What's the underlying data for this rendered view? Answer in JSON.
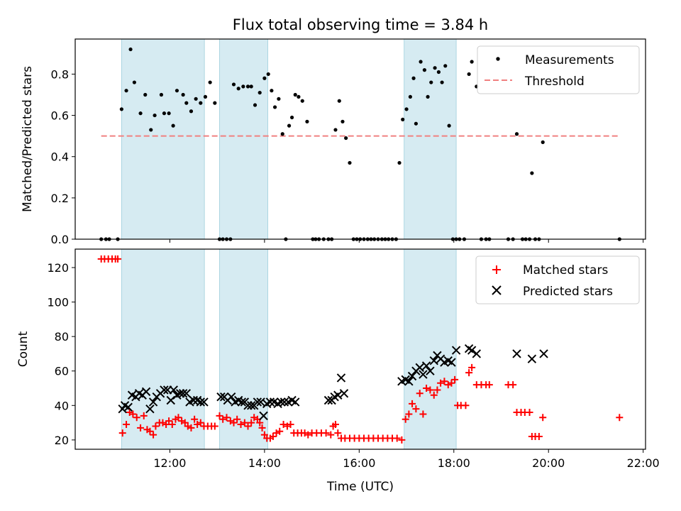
{
  "chart_data": [
    {
      "type": "scatter",
      "title": "Flux total observing time = 3.84 h",
      "xlabel": "",
      "ylabel": "Matched/Predicted stars",
      "xlim": [
        10.0,
        22.05
      ],
      "ylim": [
        0.0,
        0.97
      ],
      "yticks": [
        0.0,
        0.2,
        0.4,
        0.6,
        0.8
      ],
      "ytick_labels": [
        "0.0",
        "0.2",
        "0.4",
        "0.6",
        "0.8"
      ],
      "shaded_intervals": [
        [
          10.98,
          12.73
        ],
        [
          13.05,
          14.07
        ],
        [
          16.95,
          18.05
        ]
      ],
      "legend_position": "top-right",
      "series": [
        {
          "name": "Measurements",
          "style": "dot",
          "color": "#000000",
          "x": [
            10.55,
            10.65,
            10.72,
            10.9,
            10.98,
            11.08,
            11.17,
            11.25,
            11.38,
            11.48,
            11.6,
            11.68,
            11.82,
            11.88,
            11.98,
            12.07,
            12.15,
            12.28,
            12.35,
            12.45,
            12.55,
            12.65,
            12.75,
            12.85,
            12.95,
            13.05,
            13.12,
            13.2,
            13.28,
            13.35,
            13.45,
            13.55,
            13.65,
            13.72,
            13.8,
            13.9,
            14.0,
            14.08,
            14.15,
            14.22,
            14.3,
            14.38,
            14.45,
            14.52,
            14.58,
            14.65,
            14.72,
            14.8,
            14.9,
            15.02,
            15.08,
            15.15,
            15.25,
            15.35,
            15.42,
            15.5,
            15.58,
            15.65,
            15.72,
            15.8,
            15.88,
            15.95,
            16.02,
            16.1,
            16.18,
            16.25,
            16.32,
            16.4,
            16.48,
            16.55,
            16.62,
            16.7,
            16.78,
            16.85,
            16.92,
            17.0,
            17.08,
            17.15,
            17.2,
            17.3,
            17.38,
            17.45,
            17.52,
            17.6,
            17.68,
            17.75,
            17.82,
            17.9,
            17.98,
            18.05,
            18.12,
            18.22,
            18.32,
            18.38,
            18.48,
            18.58,
            18.68,
            18.75,
            19.15,
            19.25,
            19.33,
            19.45,
            19.52,
            19.6,
            19.65,
            19.72,
            19.8,
            19.88,
            21.5
          ],
          "y": [
            0.0,
            0.0,
            0.0,
            0.0,
            0.63,
            0.72,
            0.92,
            0.76,
            0.61,
            0.7,
            0.53,
            0.6,
            0.7,
            0.61,
            0.61,
            0.55,
            0.72,
            0.7,
            0.66,
            0.62,
            0.68,
            0.66,
            0.69,
            0.76,
            0.66,
            0.0,
            0.0,
            0.0,
            0.0,
            0.75,
            0.73,
            0.74,
            0.74,
            0.74,
            0.65,
            0.71,
            0.78,
            0.8,
            0.72,
            0.64,
            0.68,
            0.51,
            0.0,
            0.55,
            0.59,
            0.7,
            0.69,
            0.67,
            0.57,
            0.0,
            0.0,
            0.0,
            0.0,
            0.0,
            0.0,
            0.53,
            0.67,
            0.57,
            0.49,
            0.37,
            0.0,
            0.0,
            0.0,
            0.0,
            0.0,
            0.0,
            0.0,
            0.0,
            0.0,
            0.0,
            0.0,
            0.0,
            0.0,
            0.37,
            0.58,
            0.63,
            0.69,
            0.78,
            0.56,
            0.86,
            0.82,
            0.69,
            0.76,
            0.83,
            0.81,
            0.76,
            0.84,
            0.55,
            0.0,
            0.0,
            0.0,
            0.0,
            0.8,
            0.86,
            0.74,
            0.0,
            0.0,
            0.0,
            0.0,
            0.0,
            0.51,
            0.0,
            0.0,
            0.0,
            0.32,
            0.0,
            0.0,
            0.47,
            0.0
          ]
        },
        {
          "name": "Threshold",
          "style": "dashed-line",
          "color": "#f08080",
          "x": [
            10.55,
            21.5
          ],
          "y": [
            0.5,
            0.5
          ]
        }
      ]
    },
    {
      "type": "scatter",
      "title": "",
      "xlabel": "Time (UTC)",
      "ylabel": "Count",
      "xlim": [
        10.0,
        22.05
      ],
      "ylim": [
        14.6,
        130.7
      ],
      "yticks": [
        20,
        40,
        60,
        80,
        100,
        120
      ],
      "ytick_labels": [
        "20",
        "40",
        "60",
        "80",
        "100",
        "120"
      ],
      "xticks": [
        12,
        14,
        16,
        18,
        20,
        22
      ],
      "xtick_labels": [
        "12:00",
        "14:00",
        "16:00",
        "18:00",
        "20:00",
        "22:00"
      ],
      "shaded_intervals": [
        [
          10.98,
          12.73
        ],
        [
          13.05,
          14.07
        ],
        [
          16.95,
          18.05
        ]
      ],
      "legend_position": "top-right",
      "series": [
        {
          "name": "Matched stars",
          "style": "plus",
          "color": "#ff0000",
          "x": [
            10.55,
            10.62,
            10.7,
            10.78,
            10.85,
            10.9,
            11.0,
            11.08,
            11.15,
            11.22,
            11.3,
            11.38,
            11.45,
            11.52,
            11.58,
            11.65,
            11.7,
            11.78,
            11.85,
            11.92,
            11.98,
            12.05,
            12.12,
            12.18,
            12.25,
            12.32,
            12.38,
            12.45,
            12.52,
            12.58,
            12.65,
            12.72,
            12.8,
            12.88,
            12.95,
            13.05,
            13.12,
            13.2,
            13.28,
            13.35,
            13.42,
            13.5,
            13.58,
            13.65,
            13.72,
            13.78,
            13.85,
            13.9,
            13.95,
            14.0,
            14.05,
            14.12,
            14.18,
            14.25,
            14.32,
            14.4,
            14.48,
            14.55,
            14.62,
            14.7,
            14.78,
            14.85,
            14.92,
            15.0,
            15.1,
            15.2,
            15.3,
            15.4,
            15.45,
            15.5,
            15.55,
            15.62,
            15.7,
            15.8,
            15.9,
            16.0,
            16.1,
            16.2,
            16.3,
            16.4,
            16.5,
            16.6,
            16.7,
            16.8,
            16.9,
            16.98,
            17.05,
            17.12,
            17.2,
            17.28,
            17.35,
            17.42,
            17.5,
            17.58,
            17.65,
            17.72,
            17.8,
            17.88,
            17.95,
            18.02,
            18.08,
            18.15,
            18.25,
            18.32,
            18.38,
            18.48,
            18.58,
            18.68,
            18.75,
            19.15,
            19.25,
            19.33,
            19.42,
            19.5,
            19.6,
            19.65,
            19.72,
            19.8,
            19.88,
            21.5
          ],
          "y": [
            125,
            125,
            125,
            125,
            125,
            125,
            24,
            29,
            36,
            35,
            33,
            27,
            34,
            26,
            25,
            23,
            28,
            30,
            30,
            29,
            31,
            29,
            32,
            33,
            31,
            30,
            28,
            27,
            32,
            29,
            30,
            28,
            28,
            28,
            28,
            34,
            32,
            33,
            31,
            30,
            32,
            29,
            30,
            28,
            30,
            33,
            32,
            30,
            27,
            23,
            21,
            21,
            22,
            24,
            25,
            29,
            28,
            29,
            24,
            24,
            24,
            24,
            23,
            24,
            24,
            24,
            24,
            23,
            28,
            29,
            24,
            21,
            21,
            21,
            21,
            21,
            21,
            21,
            21,
            21,
            21,
            21,
            21,
            21,
            20,
            32,
            35,
            41,
            38,
            47,
            35,
            50,
            49,
            46,
            49,
            53,
            54,
            52,
            53,
            55,
            40,
            40,
            40,
            59,
            62,
            52,
            52,
            52,
            52,
            52,
            52,
            36,
            36,
            36,
            36,
            22,
            22,
            22,
            33,
            33
          ]
        },
        {
          "name": "Predicted stars",
          "style": "x",
          "color": "#000000",
          "x": [
            11.0,
            11.05,
            11.12,
            11.2,
            11.28,
            11.35,
            11.42,
            11.5,
            11.58,
            11.65,
            11.72,
            11.8,
            11.88,
            11.95,
            12.02,
            12.08,
            12.15,
            12.22,
            12.28,
            12.35,
            12.42,
            12.5,
            12.58,
            12.65,
            12.72,
            13.08,
            13.15,
            13.22,
            13.3,
            13.38,
            13.45,
            13.52,
            13.58,
            13.65,
            13.72,
            13.78,
            13.85,
            13.92,
            13.98,
            14.05,
            14.12,
            14.2,
            14.28,
            14.35,
            14.42,
            14.5,
            14.58,
            14.65,
            15.35,
            15.42,
            15.48,
            15.55,
            15.62,
            15.68,
            16.9,
            16.98,
            17.05,
            17.12,
            17.2,
            17.28,
            17.35,
            17.42,
            17.5,
            17.58,
            17.65,
            17.72,
            17.8,
            17.88,
            17.95,
            18.05,
            18.32,
            18.38,
            18.48,
            19.33,
            19.65,
            19.9
          ],
          "y": [
            38,
            40,
            39,
            46,
            45,
            47,
            46,
            48,
            38,
            42,
            45,
            47,
            49,
            49,
            43,
            49,
            46,
            47,
            47,
            47,
            42,
            43,
            43,
            42,
            42,
            45,
            45,
            43,
            45,
            42,
            43,
            42,
            42,
            40,
            40,
            40,
            42,
            42,
            34,
            41,
            42,
            42,
            41,
            42,
            42,
            42,
            43,
            42,
            43,
            43,
            45,
            46,
            56,
            47,
            54,
            55,
            54,
            57,
            60,
            62,
            58,
            63,
            60,
            66,
            69,
            67,
            65,
            66,
            65,
            72,
            73,
            72,
            70,
            70,
            67,
            70
          ]
        }
      ]
    }
  ]
}
